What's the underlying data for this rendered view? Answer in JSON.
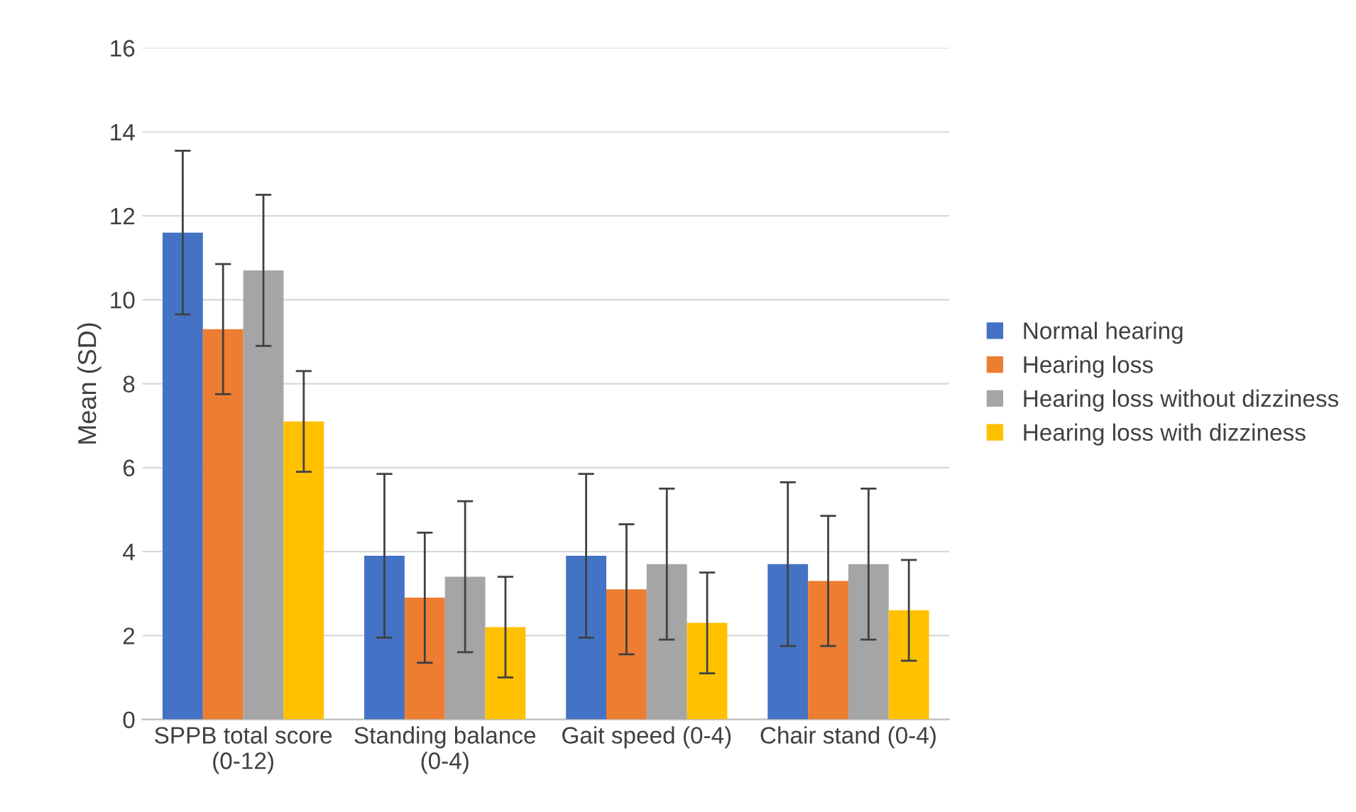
{
  "chart_data": {
    "type": "bar",
    "ylabel": "Mean (SD)",
    "categories": [
      "SPPB total score\n(0-12)",
      "Standing balance\n(0-4)",
      "Gait speed (0-4)",
      "Chair stand (0-4)"
    ],
    "series": [
      {
        "name": "Normal hearing",
        "color": "#4472c4",
        "values": [
          11.6,
          3.9,
          3.9,
          3.7
        ],
        "errors": [
          1.95,
          1.95,
          1.95,
          1.95
        ]
      },
      {
        "name": "Hearing loss",
        "color": "#ed7d31",
        "values": [
          9.3,
          2.9,
          3.1,
          3.3
        ],
        "errors": [
          1.55,
          1.55,
          1.55,
          1.55
        ]
      },
      {
        "name": "Hearing loss without dizziness",
        "color": "#a5a5a5",
        "values": [
          10.7,
          3.4,
          3.7,
          3.7
        ],
        "errors": [
          1.8,
          1.8,
          1.8,
          1.8
        ]
      },
      {
        "name": "Hearing loss with dizziness",
        "color": "#ffc000",
        "values": [
          7.1,
          2.2,
          2.3,
          2.6
        ],
        "errors": [
          1.2,
          1.2,
          1.2,
          1.2
        ]
      }
    ],
    "ylim": [
      0,
      16
    ],
    "yticks": [
      0,
      2,
      4,
      6,
      8,
      10,
      12,
      14,
      16
    ],
    "grid": "y",
    "legend": "right"
  }
}
